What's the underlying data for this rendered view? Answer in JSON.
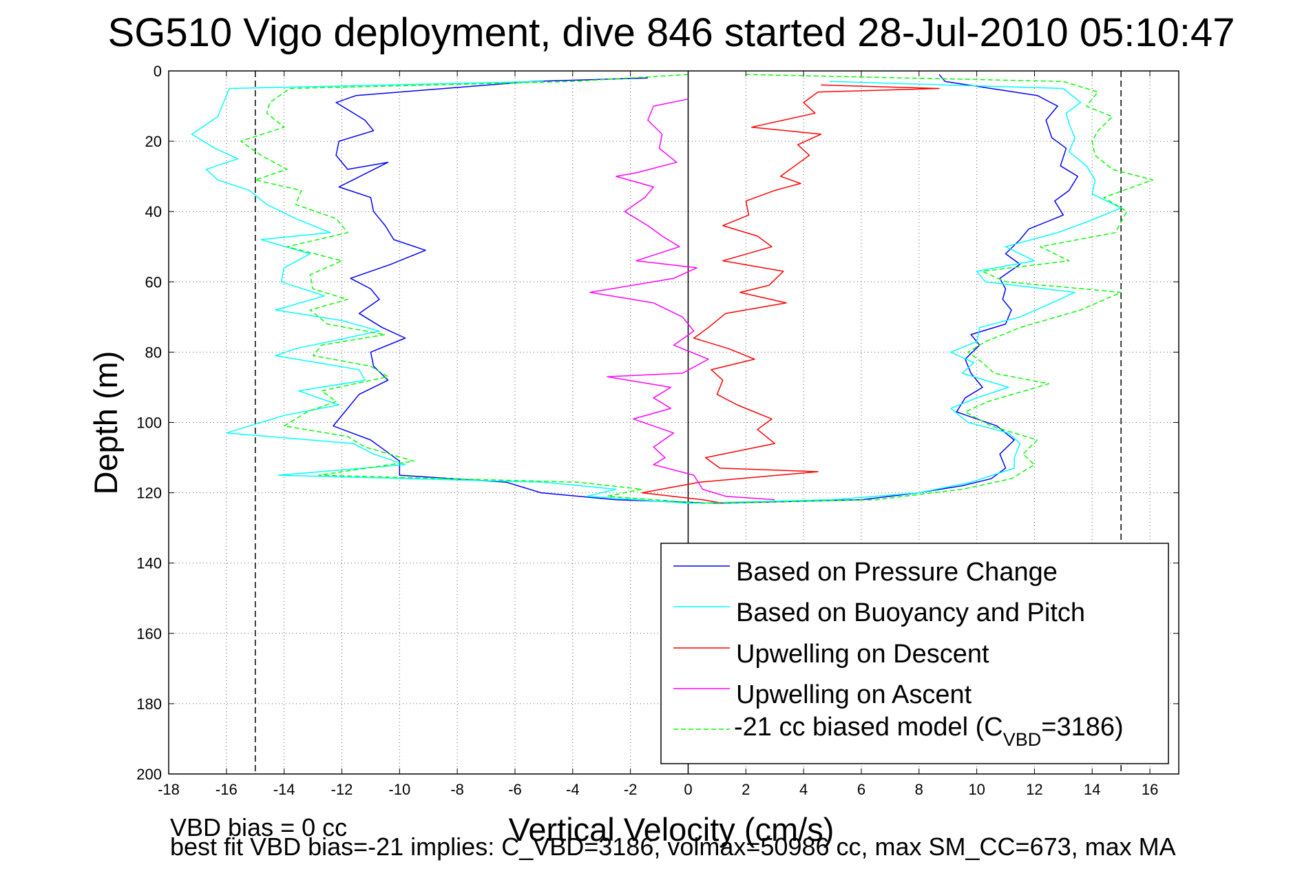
{
  "chart_data": {
    "type": "line",
    "title": "SG510 Vigo deployment, dive 846 started 28-Jul-2010 05:10:47",
    "xlabel": "Vertical Velocity (cm/s)",
    "ylabel": "Depth (m)",
    "xlim": [
      -18,
      17
    ],
    "ylim": [
      0,
      200
    ],
    "y_reversed": true,
    "xticks": [
      -18,
      -16,
      -14,
      -12,
      -10,
      -8,
      -6,
      -4,
      -2,
      0,
      2,
      4,
      6,
      8,
      10,
      12,
      14,
      16
    ],
    "yticks": [
      0,
      20,
      40,
      60,
      80,
      100,
      120,
      140,
      160,
      180,
      200
    ],
    "grid": true,
    "legend_position": "bottom-right",
    "reference_lines": [
      {
        "x": -15,
        "style": "dashed",
        "color": "#000000"
      },
      {
        "x": 0,
        "style": "solid",
        "color": "#000000"
      },
      {
        "x": 15,
        "style": "dashed",
        "color": "#000000"
      }
    ],
    "series": [
      {
        "name": "Based on Pressure Change",
        "color": "#0000ff",
        "dash": "solid",
        "points": [
          [
            -1.4,
            2
          ],
          [
            -5.4,
            3
          ],
          [
            -11.5,
            7
          ],
          [
            -12.2,
            9
          ],
          [
            -11.2,
            14
          ],
          [
            -10.9,
            17
          ],
          [
            -12.1,
            20
          ],
          [
            -12.2,
            24
          ],
          [
            -11.8,
            28
          ],
          [
            -10.4,
            26
          ],
          [
            -12.1,
            33
          ],
          [
            -11.0,
            36
          ],
          [
            -10.9,
            40
          ],
          [
            -10.5,
            44
          ],
          [
            -10.2,
            48
          ],
          [
            -9.1,
            51
          ],
          [
            -10.3,
            55
          ],
          [
            -11.7,
            59
          ],
          [
            -11.0,
            62
          ],
          [
            -10.7,
            65
          ],
          [
            -11.4,
            69
          ],
          [
            -10.6,
            73
          ],
          [
            -9.8,
            76
          ],
          [
            -11.0,
            80
          ],
          [
            -10.9,
            84
          ],
          [
            -10.4,
            88
          ],
          [
            -11.4,
            92
          ],
          [
            -11.8,
            96
          ],
          [
            -12.3,
            101
          ],
          [
            -11.0,
            105
          ],
          [
            -10.5,
            108
          ],
          [
            -10.0,
            111
          ],
          [
            -10.0,
            115
          ],
          [
            -6.3,
            117
          ],
          [
            -5.1,
            120
          ],
          [
            -2.5,
            122
          ],
          [
            1.0,
            123
          ],
          [
            6.0,
            122
          ],
          [
            8.0,
            120
          ],
          [
            9.5,
            118
          ],
          [
            10.5,
            116
          ],
          [
            11.0,
            113
          ],
          [
            10.8,
            109
          ],
          [
            11.3,
            105
          ],
          [
            10.7,
            101
          ],
          [
            9.3,
            97
          ],
          [
            9.6,
            93
          ],
          [
            10.2,
            90
          ],
          [
            9.8,
            86
          ],
          [
            9.6,
            82
          ],
          [
            10.1,
            78
          ],
          [
            9.8,
            75
          ],
          [
            11.0,
            72
          ],
          [
            11.2,
            68
          ],
          [
            10.9,
            65
          ],
          [
            11.0,
            62
          ],
          [
            10.8,
            59
          ],
          [
            11.5,
            55
          ],
          [
            11.0,
            52
          ],
          [
            11.5,
            48
          ],
          [
            11.8,
            45
          ],
          [
            13.0,
            41
          ],
          [
            12.7,
            37
          ],
          [
            13.2,
            34
          ],
          [
            13.5,
            30
          ],
          [
            12.9,
            27
          ],
          [
            13.1,
            22
          ],
          [
            12.6,
            19
          ],
          [
            12.4,
            14
          ],
          [
            12.8,
            10
          ],
          [
            12.1,
            7
          ],
          [
            8.9,
            3
          ],
          [
            8.7,
            1
          ]
        ]
      },
      {
        "name": "Based on Buoyancy and Pitch",
        "color": "#00ffff",
        "dash": "solid",
        "points": [
          [
            -5.0,
            3
          ],
          [
            -15.9,
            5
          ],
          [
            -16.1,
            9
          ],
          [
            -16.3,
            13
          ],
          [
            -17.2,
            18
          ],
          [
            -16.4,
            22
          ],
          [
            -15.6,
            25
          ],
          [
            -16.7,
            28
          ],
          [
            -16.3,
            31
          ],
          [
            -15.2,
            34
          ],
          [
            -14.6,
            38
          ],
          [
            -13.6,
            42
          ],
          [
            -12.4,
            46
          ],
          [
            -14.8,
            48
          ],
          [
            -13.1,
            52
          ],
          [
            -14.0,
            56
          ],
          [
            -14.1,
            60
          ],
          [
            -12.6,
            64
          ],
          [
            -14.3,
            68
          ],
          [
            -12.0,
            71
          ],
          [
            -10.7,
            74
          ],
          [
            -13.6,
            79
          ],
          [
            -14.3,
            81
          ],
          [
            -11.4,
            85
          ],
          [
            -11.2,
            88
          ],
          [
            -13.5,
            91
          ],
          [
            -12.1,
            95
          ],
          [
            -14.0,
            98
          ],
          [
            -16.0,
            103
          ],
          [
            -11.6,
            106
          ],
          [
            -10.9,
            109
          ],
          [
            -9.8,
            112
          ],
          [
            -14.2,
            115
          ],
          [
            -5.0,
            117
          ],
          [
            -2.5,
            119
          ],
          [
            -3.5,
            121
          ],
          [
            0.0,
            123
          ],
          [
            5.0,
            122
          ],
          [
            8.0,
            120
          ],
          [
            9.8,
            117
          ],
          [
            11.3,
            113
          ],
          [
            11.3,
            110
          ],
          [
            11.5,
            106
          ],
          [
            11.1,
            103
          ],
          [
            9.7,
            100
          ],
          [
            9.1,
            96
          ],
          [
            10.0,
            93
          ],
          [
            11.1,
            90
          ],
          [
            9.5,
            86
          ],
          [
            9.9,
            83
          ],
          [
            9.1,
            80
          ],
          [
            10.0,
            77
          ],
          [
            10.1,
            73
          ],
          [
            11.5,
            70
          ],
          [
            12.6,
            66
          ],
          [
            13.4,
            63
          ],
          [
            10.3,
            60
          ],
          [
            10.0,
            57
          ],
          [
            12.0,
            54
          ],
          [
            11.0,
            50
          ],
          [
            12.8,
            46
          ],
          [
            13.8,
            43
          ],
          [
            15.0,
            39
          ],
          [
            14.0,
            35
          ],
          [
            14.1,
            31
          ],
          [
            13.8,
            27
          ],
          [
            13.2,
            23
          ],
          [
            13.4,
            19
          ],
          [
            13.2,
            15
          ],
          [
            13.1,
            12
          ],
          [
            13.6,
            9
          ],
          [
            13.0,
            5
          ],
          [
            4.9,
            3
          ]
        ]
      },
      {
        "name": "Upwelling on Descent",
        "color": "#ff0000",
        "dash": "solid",
        "points": [
          [
            4.6,
            4
          ],
          [
            8.7,
            5
          ],
          [
            4.5,
            6
          ],
          [
            4.0,
            9
          ],
          [
            4.4,
            12
          ],
          [
            2.2,
            16
          ],
          [
            4.6,
            18
          ],
          [
            3.8,
            21
          ],
          [
            4.2,
            24
          ],
          [
            3.7,
            27
          ],
          [
            3.2,
            30
          ],
          [
            3.9,
            32
          ],
          [
            3.0,
            34
          ],
          [
            2.0,
            37
          ],
          [
            2.1,
            41
          ],
          [
            1.2,
            44
          ],
          [
            2.4,
            47
          ],
          [
            2.9,
            50
          ],
          [
            1.2,
            54
          ],
          [
            3.3,
            57
          ],
          [
            2.8,
            61
          ],
          [
            1.8,
            63
          ],
          [
            3.4,
            66
          ],
          [
            1.3,
            69
          ],
          [
            0.7,
            73
          ],
          [
            0.2,
            76
          ],
          [
            1.4,
            79
          ],
          [
            2.3,
            82
          ],
          [
            0.8,
            85
          ],
          [
            1.2,
            88
          ],
          [
            1.0,
            92
          ],
          [
            1.7,
            95
          ],
          [
            2.9,
            99
          ],
          [
            2.4,
            102
          ],
          [
            3.0,
            106
          ],
          [
            0.6,
            110
          ],
          [
            1.1,
            113
          ],
          [
            4.5,
            114
          ],
          [
            0.4,
            117
          ],
          [
            -1.6,
            120
          ],
          [
            0.5,
            122
          ],
          [
            1.2,
            123
          ]
        ]
      },
      {
        "name": "Upwelling on Ascent",
        "color": "#ff00ff",
        "dash": "solid",
        "points": [
          [
            0.0,
            8
          ],
          [
            -1.2,
            10
          ],
          [
            -1.4,
            14
          ],
          [
            -0.9,
            18
          ],
          [
            -1.0,
            22
          ],
          [
            -0.4,
            26
          ],
          [
            -1.8,
            29
          ],
          [
            -2.5,
            30
          ],
          [
            -1.2,
            33
          ],
          [
            -1.5,
            36
          ],
          [
            -2.2,
            40
          ],
          [
            -1.4,
            44
          ],
          [
            -0.9,
            47
          ],
          [
            -0.3,
            50
          ],
          [
            -1.8,
            54
          ],
          [
            0.3,
            56
          ],
          [
            -0.5,
            59
          ],
          [
            -3.4,
            63
          ],
          [
            -1.2,
            66
          ],
          [
            -0.2,
            70
          ],
          [
            0.2,
            74
          ],
          [
            -0.5,
            78
          ],
          [
            0.7,
            82
          ],
          [
            -0.2,
            86
          ],
          [
            -2.8,
            87
          ],
          [
            -0.6,
            90
          ],
          [
            -1.2,
            93
          ],
          [
            -0.6,
            96
          ],
          [
            -1.9,
            99
          ],
          [
            -0.5,
            103
          ],
          [
            -1.2,
            107
          ],
          [
            -0.8,
            110
          ],
          [
            -1.2,
            112
          ],
          [
            0.2,
            115
          ],
          [
            0.5,
            119
          ],
          [
            1.3,
            121
          ],
          [
            3.0,
            122
          ]
        ]
      },
      {
        "name": "-21 cc biased model (C_VBD=3186)",
        "color": "#00ff00",
        "dash": "dashed",
        "points": [
          [
            0.0,
            1
          ],
          [
            -4.0,
            3
          ],
          [
            -13.8,
            5
          ],
          [
            -14.5,
            9
          ],
          [
            -14.6,
            12
          ],
          [
            -14.0,
            16
          ],
          [
            -15.5,
            20
          ],
          [
            -14.8,
            24
          ],
          [
            -13.9,
            28
          ],
          [
            -15.0,
            31
          ],
          [
            -13.4,
            34
          ],
          [
            -13.6,
            38
          ],
          [
            -12.2,
            42
          ],
          [
            -11.8,
            46
          ],
          [
            -13.9,
            50
          ],
          [
            -12.0,
            54
          ],
          [
            -13.1,
            58
          ],
          [
            -13.0,
            62
          ],
          [
            -11.8,
            65
          ],
          [
            -13.1,
            68
          ],
          [
            -12.5,
            72
          ],
          [
            -10.5,
            75
          ],
          [
            -12.7,
            78
          ],
          [
            -13.0,
            81
          ],
          [
            -11.0,
            84
          ],
          [
            -10.4,
            87
          ],
          [
            -12.7,
            91
          ],
          [
            -12.2,
            94
          ],
          [
            -13.2,
            97
          ],
          [
            -14.0,
            101
          ],
          [
            -11.8,
            104
          ],
          [
            -11.2,
            107
          ],
          [
            -9.5,
            111
          ],
          [
            -12.8,
            115
          ],
          [
            -3.8,
            117
          ],
          [
            -1.6,
            119
          ],
          [
            -2.8,
            121
          ],
          [
            0.5,
            123
          ],
          [
            6.5,
            122
          ],
          [
            9.5,
            119
          ],
          [
            11.2,
            116
          ],
          [
            12.0,
            112
          ],
          [
            11.6,
            109
          ],
          [
            12.1,
            105
          ],
          [
            10.5,
            101
          ],
          [
            9.6,
            97
          ],
          [
            10.4,
            94
          ],
          [
            12.5,
            89
          ],
          [
            10.6,
            86
          ],
          [
            10.2,
            83
          ],
          [
            9.7,
            80
          ],
          [
            10.3,
            77
          ],
          [
            11.5,
            73
          ],
          [
            13.6,
            68
          ],
          [
            15.0,
            63
          ],
          [
            11.0,
            60
          ],
          [
            10.2,
            57
          ],
          [
            13.2,
            54
          ],
          [
            12.2,
            50
          ],
          [
            14.8,
            46
          ],
          [
            15.2,
            40
          ],
          [
            14.4,
            36
          ],
          [
            16.1,
            31
          ],
          [
            14.7,
            28
          ],
          [
            14.1,
            24
          ],
          [
            14.0,
            20
          ],
          [
            14.2,
            17
          ],
          [
            14.7,
            13
          ],
          [
            13.8,
            10
          ],
          [
            14.2,
            6
          ],
          [
            13.0,
            3
          ],
          [
            2.0,
            1
          ]
        ]
      }
    ],
    "legend": [
      {
        "label": "Based on Pressure Change",
        "color": "#0000ff",
        "dash": "solid"
      },
      {
        "label": "Based on Buoyancy and Pitch",
        "color": "#00ffff",
        "dash": "solid"
      },
      {
        "label": "Upwelling on Descent",
        "color": "#ff0000",
        "dash": "solid"
      },
      {
        "label": "Upwelling on Ascent",
        "color": "#ff00ff",
        "dash": "solid"
      },
      {
        "label_main": "-21 cc biased model (C",
        "label_sub": "VBD",
        "label_end": "=3186)",
        "color": "#00ff00",
        "dash": "dashed"
      }
    ],
    "annotations": [
      "VBD bias = 0 cc",
      "best fit VBD bias=-21 implies: C_VBD=3186, volmax=50986 cc, max SM_CC=673, max MA"
    ]
  }
}
